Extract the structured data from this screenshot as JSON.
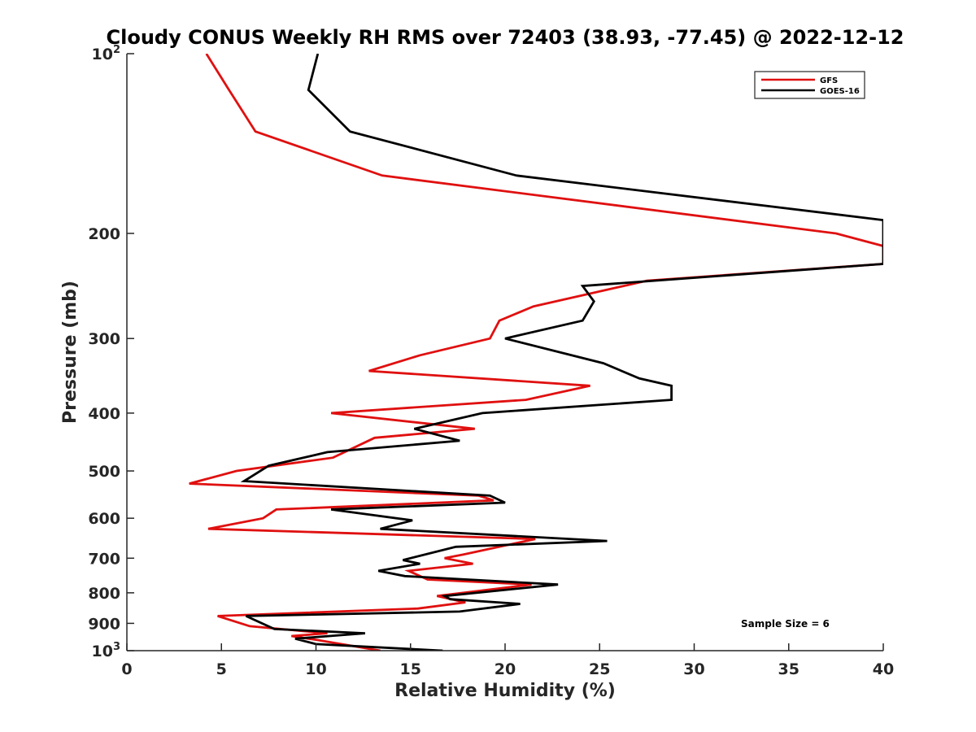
{
  "chart_data": {
    "type": "line",
    "title": "Cloudy CONUS Weekly RH RMS over 72403 (38.93, -77.45) @ 2022-12-12",
    "xlabel": "Relative Humidity (%)",
    "ylabel": "Pressure (mb)",
    "xlim": [
      0,
      40
    ],
    "ylim": [
      100,
      1000
    ],
    "y_scale": "log",
    "y_reversed": true,
    "x_ticks": [
      0,
      5,
      10,
      15,
      20,
      25,
      30,
      35,
      40
    ],
    "x_tick_labels": [
      "0",
      "5",
      "10",
      "15",
      "20",
      "25",
      "30",
      "35",
      "40"
    ],
    "y_ticks": [
      100,
      200,
      300,
      400,
      500,
      600,
      700,
      800,
      900,
      1000
    ],
    "y_tick_labels": [
      {
        "base": "10",
        "exp": "2"
      },
      {
        "base": "200",
        "exp": ""
      },
      {
        "base": "300",
        "exp": ""
      },
      {
        "base": "400",
        "exp": ""
      },
      {
        "base": "500",
        "exp": ""
      },
      {
        "base": "600",
        "exp": ""
      },
      {
        "base": "700",
        "exp": ""
      },
      {
        "base": "800",
        "exp": ""
      },
      {
        "base": "900",
        "exp": ""
      },
      {
        "base": "10",
        "exp": "3"
      }
    ],
    "grid": false,
    "legend_position": "top-right",
    "annotation": "Sample Size = 6",
    "series": [
      {
        "name": "GFS",
        "color": "#e01010",
        "points": [
          [
            4.2,
            100
          ],
          [
            5.4,
            115
          ],
          [
            6.8,
            135
          ],
          [
            13.5,
            160
          ],
          [
            37.5,
            200
          ],
          [
            40,
            210
          ],
          [
            40,
            225
          ],
          [
            27.5,
            240
          ],
          [
            21.5,
            265
          ],
          [
            19.7,
            280
          ],
          [
            19.2,
            300
          ],
          [
            15.5,
            320
          ],
          [
            12.8,
            340
          ],
          [
            24.5,
            360
          ],
          [
            21.1,
            380
          ],
          [
            10.8,
            400
          ],
          [
            18.4,
            425
          ],
          [
            13.1,
            440
          ],
          [
            10.9,
            475
          ],
          [
            5.8,
            500
          ],
          [
            3.3,
            525
          ],
          [
            18.6,
            550
          ],
          [
            19.4,
            560
          ],
          [
            7.9,
            580
          ],
          [
            7.2,
            600
          ],
          [
            4.3,
            625
          ],
          [
            21.6,
            650
          ],
          [
            17.8,
            690
          ],
          [
            16.8,
            700
          ],
          [
            18.3,
            715
          ],
          [
            14.9,
            735
          ],
          [
            15.9,
            760
          ],
          [
            21.4,
            775
          ],
          [
            16.4,
            810
          ],
          [
            17.9,
            830
          ],
          [
            15.4,
            850
          ],
          [
            4.8,
            875
          ],
          [
            6.5,
            910
          ],
          [
            10.6,
            935
          ],
          [
            8.7,
            945
          ],
          [
            10.1,
            960
          ],
          [
            13.4,
            1000
          ]
        ]
      },
      {
        "name": "GOES-16",
        "color": "#000000",
        "points": [
          [
            10.1,
            100
          ],
          [
            9.6,
            115
          ],
          [
            11.8,
            135
          ],
          [
            20.6,
            160
          ],
          [
            40,
            190
          ],
          [
            40,
            225
          ],
          [
            24.1,
            245
          ],
          [
            24.7,
            260
          ],
          [
            24.1,
            280
          ],
          [
            20.0,
            300
          ],
          [
            25.2,
            330
          ],
          [
            27.1,
            350
          ],
          [
            28.8,
            360
          ],
          [
            28.8,
            380
          ],
          [
            18.8,
            400
          ],
          [
            15.2,
            425
          ],
          [
            17.6,
            445
          ],
          [
            10.6,
            465
          ],
          [
            7.5,
            490
          ],
          [
            6.2,
            520
          ],
          [
            19.2,
            550
          ],
          [
            20.0,
            565
          ],
          [
            10.8,
            580
          ],
          [
            15.1,
            605
          ],
          [
            13.4,
            625
          ],
          [
            25.4,
            655
          ],
          [
            17.4,
            670
          ],
          [
            14.6,
            705
          ],
          [
            15.5,
            715
          ],
          [
            13.3,
            735
          ],
          [
            14.7,
            750
          ],
          [
            22.8,
            775
          ],
          [
            16.8,
            810
          ],
          [
            17.1,
            820
          ],
          [
            20.8,
            835
          ],
          [
            17.6,
            860
          ],
          [
            6.3,
            875
          ],
          [
            7.8,
            920
          ],
          [
            12.6,
            935
          ],
          [
            8.9,
            955
          ],
          [
            10.0,
            975
          ],
          [
            16.7,
            1000
          ]
        ]
      }
    ]
  }
}
